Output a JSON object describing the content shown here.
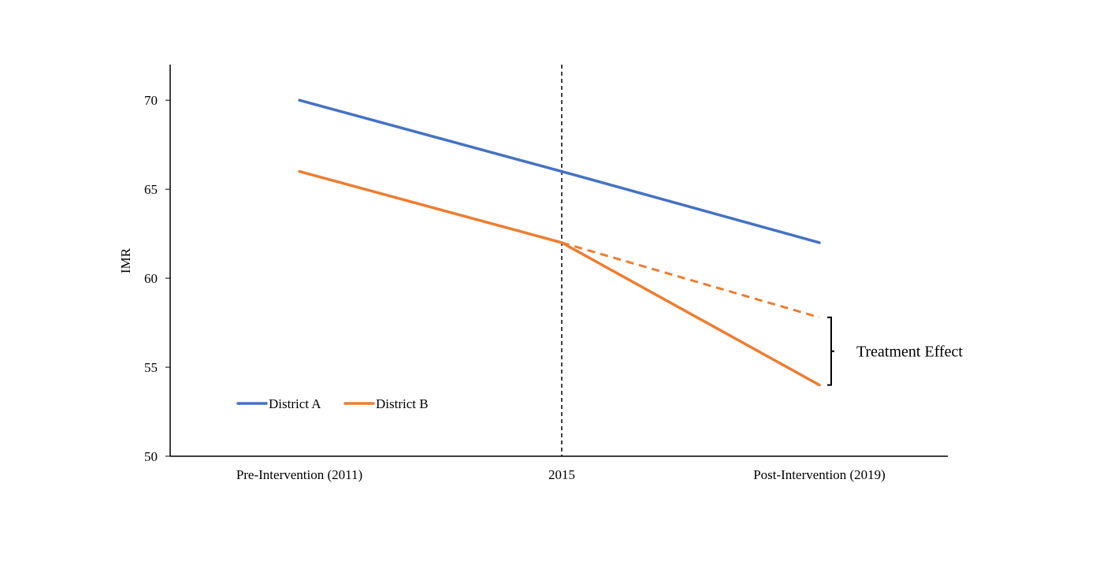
{
  "chart_data": {
    "type": "line",
    "title": "",
    "xlabel": "",
    "ylabel": "IMR",
    "ylim": [
      50,
      72
    ],
    "yticks": [
      50,
      55,
      60,
      65,
      70
    ],
    "categories": [
      "Pre-Intervention (2011)",
      "2015",
      "Post-Intervention (2019)"
    ],
    "series": [
      {
        "name": "District A",
        "values": [
          70,
          66,
          62
        ],
        "color": "#4472C4",
        "style": "solid"
      },
      {
        "name": "District B",
        "values": [
          66,
          62,
          54
        ],
        "color": "#ED7D31",
        "style": "solid"
      }
    ],
    "counterfactual": {
      "values": [
        null,
        62,
        57.8
      ],
      "color": "#ED7D31",
      "style": "dashed"
    },
    "intervention_line": {
      "category": "2015",
      "style": "dashed",
      "color": "#000000"
    },
    "annotation": {
      "label": "Treatment Effect",
      "from": 57.8,
      "to": 54
    },
    "legend": {
      "placement": "bottom-left"
    },
    "grid": false
  }
}
